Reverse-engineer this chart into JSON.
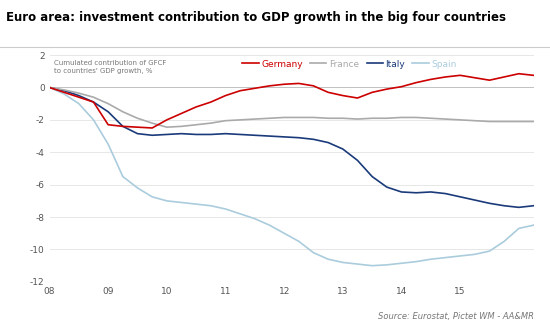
{
  "title": "Euro area: investment contribution to GDP growth in the big four countries",
  "ylabel_text": "Cumulated contribution of GFCF\nto countries' GDP growth, %",
  "source": "Source: Eurostat, Pictet WM - AA&MR",
  "ylim": [
    -12,
    2
  ],
  "yticks": [
    -12,
    -10,
    -8,
    -6,
    -4,
    -2,
    0,
    2
  ],
  "background_color": "#ffffff",
  "colors": {
    "Germany": "#cc0000",
    "France": "#aaaaaa",
    "Italy": "#1a3a7a",
    "Spain": "#aaccdd"
  },
  "germany": [
    0.0,
    -0.3,
    -0.6,
    -0.9,
    -2.3,
    -2.4,
    -2.45,
    -2.5,
    -2.0,
    -1.6,
    -1.2,
    -0.9,
    -0.5,
    -0.2,
    -0.05,
    0.1,
    0.2,
    0.25,
    0.1,
    -0.3,
    -0.5,
    -0.65,
    -0.3,
    -0.1,
    0.05,
    0.3,
    0.5,
    0.65,
    0.75,
    0.6,
    0.45,
    0.65,
    0.85,
    0.75
  ],
  "france": [
    0.0,
    -0.15,
    -0.35,
    -0.6,
    -1.0,
    -1.5,
    -1.9,
    -2.2,
    -2.45,
    -2.4,
    -2.3,
    -2.2,
    -2.05,
    -2.0,
    -1.95,
    -1.9,
    -1.85,
    -1.85,
    -1.85,
    -1.9,
    -1.9,
    -1.95,
    -1.9,
    -1.9,
    -1.85,
    -1.85,
    -1.9,
    -1.95,
    -2.0,
    -2.05,
    -2.1,
    -2.1,
    -2.1,
    -2.1
  ],
  "italy": [
    0.0,
    -0.2,
    -0.5,
    -0.9,
    -1.5,
    -2.4,
    -2.85,
    -2.95,
    -2.9,
    -2.85,
    -2.9,
    -2.9,
    -2.85,
    -2.9,
    -2.95,
    -3.0,
    -3.05,
    -3.1,
    -3.2,
    -3.4,
    -3.8,
    -4.5,
    -5.5,
    -6.15,
    -6.45,
    -6.5,
    -6.45,
    -6.55,
    -6.75,
    -6.95,
    -7.15,
    -7.3,
    -7.4,
    -7.3
  ],
  "spain": [
    0.0,
    -0.4,
    -1.0,
    -2.0,
    -3.5,
    -5.5,
    -6.2,
    -6.75,
    -7.0,
    -7.1,
    -7.2,
    -7.3,
    -7.5,
    -7.8,
    -8.1,
    -8.5,
    -9.0,
    -9.5,
    -10.2,
    -10.6,
    -10.8,
    -10.9,
    -11.0,
    -10.95,
    -10.85,
    -10.75,
    -10.6,
    -10.5,
    -10.4,
    -10.3,
    -10.1,
    -9.5,
    -8.7,
    -8.5
  ]
}
